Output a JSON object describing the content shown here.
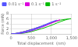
{
  "chart_data": {
    "type": "line",
    "xlabel": "Total displacement  (nm)",
    "ylabel": "Force (mN)",
    "xlim": [
      0,
      1500
    ],
    "ylim": [
      0,
      8
    ],
    "xticks": [
      0,
      500,
      1000,
      1500
    ],
    "yticks": [
      0,
      2,
      4,
      6,
      8
    ],
    "grid": true,
    "legend": "upper left",
    "series": [
      {
        "name": "0.01 s⁻¹",
        "color": "#5555ff",
        "x": [
          0,
          30,
          80,
          160,
          280,
          420,
          580,
          730,
          870,
          990,
          1070,
          1110,
          1130,
          1130,
          1110,
          1080,
          1030,
          970,
          900,
          810,
          700,
          580,
          450,
          330,
          220,
          140,
          80,
          40,
          10,
          0
        ],
        "values": [
          0,
          0.03,
          0.1,
          0.3,
          0.7,
          1.3,
          2.1,
          3.0,
          3.9,
          4.7,
          5.15,
          5.35,
          5.45,
          5.45,
          5.35,
          5.15,
          4.85,
          4.45,
          3.9,
          3.2,
          2.5,
          1.8,
          1.1,
          0.6,
          0.28,
          0.1,
          0.03,
          0.005,
          0.0,
          0.0
        ]
      },
      {
        "name": "0.1 s⁻¹",
        "color": "#dd00dd",
        "x": [
          0,
          35,
          90,
          175,
          300,
          450,
          610,
          770,
          920,
          1050,
          1140,
          1190,
          1210,
          1210,
          1190,
          1160,
          1110,
          1050,
          970,
          880,
          760,
          630,
          500,
          370,
          250,
          160,
          90,
          45,
          15,
          0
        ],
        "values": [
          0,
          0.04,
          0.13,
          0.36,
          0.82,
          1.48,
          2.28,
          3.18,
          4.05,
          4.85,
          5.3,
          5.5,
          5.55,
          5.55,
          5.5,
          5.3,
          5.0,
          4.6,
          4.05,
          3.4,
          2.65,
          1.9,
          1.2,
          0.65,
          0.3,
          0.1,
          0.03,
          0.005,
          0.0,
          0.0
        ]
      },
      {
        "name": "1 s⁻¹",
        "color": "#00bb00",
        "x": [
          0,
          45,
          110,
          210,
          350,
          520,
          700,
          880,
          1060,
          1220,
          1360,
          1440,
          1480,
          1480,
          1450,
          1400,
          1330,
          1250,
          1150,
          1040,
          910,
          760,
          600,
          460,
          330,
          210,
          120,
          60,
          20,
          0
        ],
        "values": [
          0,
          0.06,
          0.19,
          0.5,
          1.05,
          1.85,
          2.75,
          3.75,
          4.75,
          5.5,
          5.85,
          6.0,
          6.05,
          6.05,
          6.0,
          5.85,
          5.5,
          5.05,
          4.45,
          3.7,
          2.9,
          2.1,
          1.35,
          0.75,
          0.35,
          0.12,
          0.04,
          0.008,
          0.0,
          0.0
        ]
      }
    ]
  }
}
